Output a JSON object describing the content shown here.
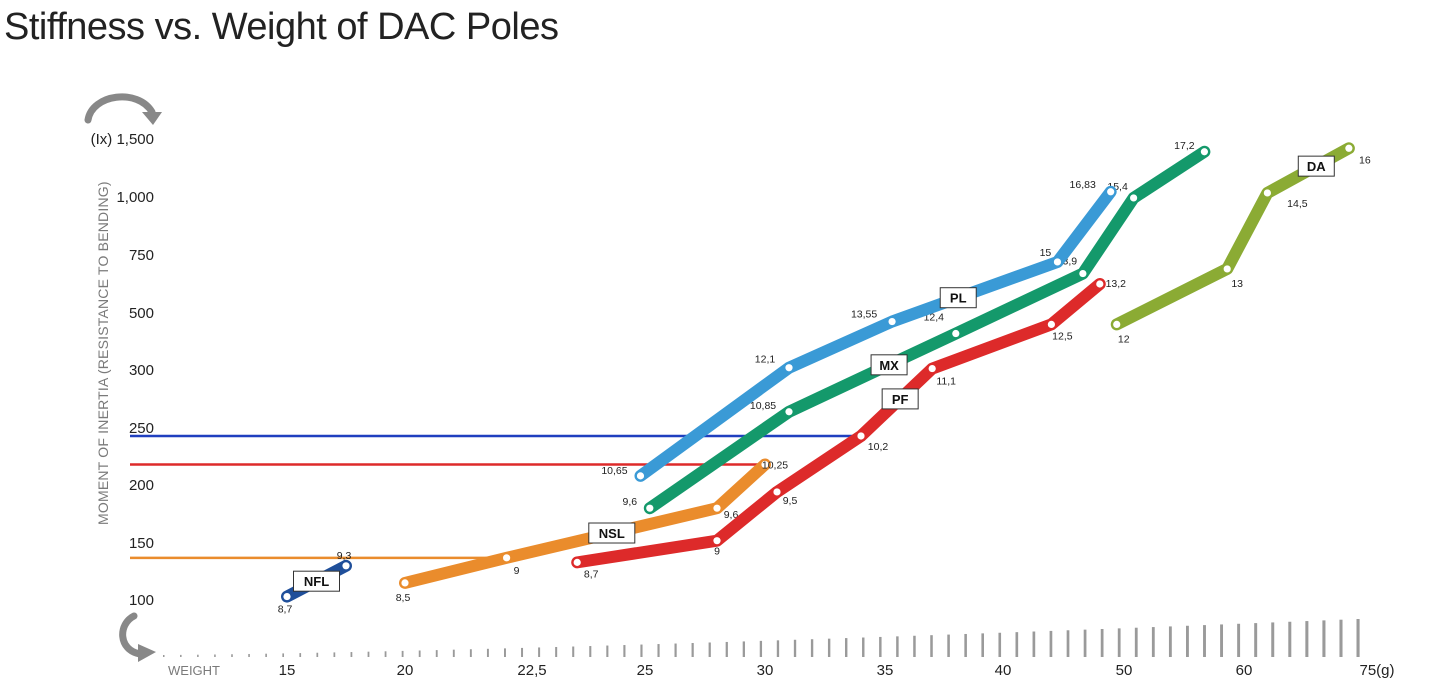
{
  "title": "Stiffness vs. Weight of DAC Poles",
  "chart_data": {
    "type": "line",
    "title": "Stiffness vs. Weight of DAC Poles",
    "ylabel": "MOMENT OF INERTIA (RESISTANCE TO BENDING)",
    "yunit": "(Ix)",
    "xlabel": "WEIGHT",
    "xunit": "(g)",
    "y_ticks": [
      "100",
      "150",
      "200",
      "250",
      "300",
      "500",
      "750",
      "1,000",
      "1,500"
    ],
    "y_tick_top_label": "(Ix) 1,500",
    "x_ticks": [
      "15",
      "20",
      "22,5",
      "25",
      "30",
      "35",
      "40",
      "50",
      "60",
      "75(g)"
    ],
    "series": [
      {
        "name": "NFL",
        "color": "#1f4f9a",
        "points": [
          {
            "x": 15,
            "y": 103,
            "label": "8,7"
          },
          {
            "x": 17.5,
            "y": 130,
            "label": "9,3"
          }
        ]
      },
      {
        "name": "NSL",
        "color": "#ea8c2c",
        "points": [
          {
            "x": 20,
            "y": 115,
            "label": "8,5"
          },
          {
            "x": 22,
            "y": 137,
            "label": "9"
          },
          {
            "x": 28,
            "y": 180,
            "label": "9,6"
          },
          {
            "x": 30,
            "y": 218,
            "label": "10,25"
          }
        ]
      },
      {
        "name": "PF",
        "color": "#dd2a2a",
        "points": [
          {
            "x": 23.5,
            "y": 133,
            "label": "8,7"
          },
          {
            "x": 28,
            "y": 152,
            "label": "9"
          },
          {
            "x": 30.5,
            "y": 194,
            "label": "9,5"
          },
          {
            "x": 34,
            "y": 243,
            "label": "10,2"
          },
          {
            "x": 37,
            "y": 305,
            "label": "11,1"
          },
          {
            "x": 44,
            "y": 460,
            "label": "12,5"
          },
          {
            "x": 48,
            "y": 625,
            "label": "13,2"
          }
        ]
      },
      {
        "name": "MX",
        "color": "#14996b",
        "points": [
          {
            "x": 25.2,
            "y": 180,
            "label": "9,6"
          },
          {
            "x": 31,
            "y": 264,
            "label": "10,85"
          },
          {
            "x": 38,
            "y": 428,
            "label": "12,4"
          },
          {
            "x": 46.6,
            "y": 670,
            "label": "13,9"
          },
          {
            "x": 50.8,
            "y": 996,
            "label": "15,4"
          },
          {
            "x": 56.7,
            "y": 1390,
            "label": "17,2"
          }
        ]
      },
      {
        "name": "PL",
        "color": "#3a9ad6",
        "points": [
          {
            "x": 24.9,
            "y": 208,
            "label": "10,65"
          },
          {
            "x": 31,
            "y": 308,
            "label": "12,1"
          },
          {
            "x": 35.3,
            "y": 470,
            "label": "13,55"
          },
          {
            "x": 44.5,
            "y": 720,
            "label": "15"
          },
          {
            "x": 48.9,
            "y": 1045,
            "label": "16,83"
          }
        ]
      },
      {
        "name": "DA",
        "color": "#8bab34",
        "points": [
          {
            "x": 49.4,
            "y": 460,
            "label": "12"
          },
          {
            "x": 58.6,
            "y": 690,
            "label": "13"
          },
          {
            "x": 62.9,
            "y": 1035,
            "label": "14,5"
          },
          {
            "x": 73,
            "y": 1420,
            "label": "16"
          }
        ]
      }
    ],
    "reference_lines": [
      {
        "color": "#1f3fbf",
        "y": 243,
        "x_end": 34
      },
      {
        "color": "#dd2a2a",
        "y": 218,
        "x_end": 30
      },
      {
        "color": "#ea8c2c",
        "y": 137,
        "x_end": 22
      }
    ],
    "grid": false,
    "legend": "inline labels"
  }
}
